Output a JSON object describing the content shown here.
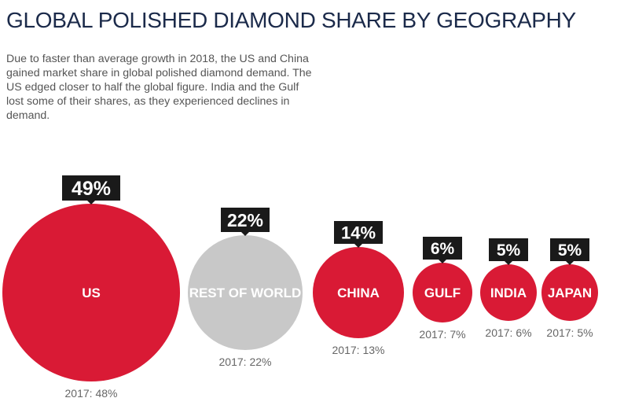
{
  "chart_data": {
    "type": "bubble",
    "title": "GLOBAL POLISHED DIAMOND SHARE BY GEOGRAPHY",
    "subtitle": "Due to faster than average growth in 2018, the US and China gained market share in global polished diamond demand. The US edged closer to half the global figure. India and the Gulf lost some of their shares, as they experienced declines in demand.",
    "categories": [
      "US",
      "REST OF WORLD",
      "CHINA",
      "GULF",
      "INDIA",
      "JAPAN"
    ],
    "values_2018": [
      49,
      22,
      14,
      6,
      5,
      5
    ],
    "value_labels": [
      "49%",
      "22%",
      "14%",
      "6%",
      "5%",
      "5%"
    ],
    "labels_2017": [
      "2017: 48%",
      "2017: 22%",
      "2017: 13%",
      "2017: 7%",
      "2017: 6%",
      "2017: 5%"
    ],
    "values_2017": [
      48,
      22,
      13,
      7,
      6,
      5
    ],
    "colors": [
      "#d91a35",
      "#c8c8c8",
      "#d91a35",
      "#d91a35",
      "#d91a35",
      "#d91a35"
    ],
    "label_box_color": "#1a1a1a"
  }
}
